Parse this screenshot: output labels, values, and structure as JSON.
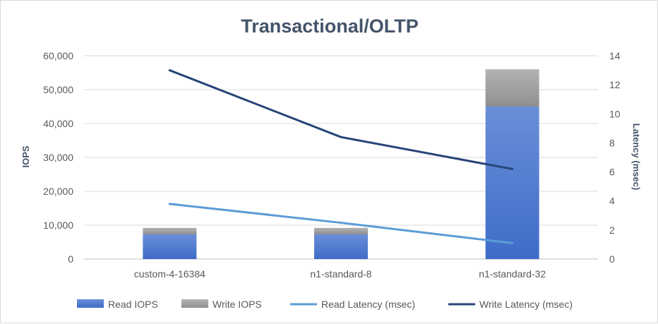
{
  "chart_data": {
    "type": "bar",
    "title": "Transactional/OLTP",
    "categories": [
      "custom-4-16384",
      "n1-standard-8",
      "n1-standard-32"
    ],
    "stacked": true,
    "series": [
      {
        "name": "Read IOPS",
        "type": "bar",
        "axis": "left",
        "color": "#4472c4",
        "values": [
          7300,
          7300,
          45000
        ]
      },
      {
        "name": "Write IOPS",
        "type": "bar",
        "axis": "left",
        "color": "#a5a5a5",
        "values": [
          1900,
          1900,
          11000
        ]
      },
      {
        "name": "Read Latency (msec)",
        "type": "line",
        "axis": "right",
        "color": "#5b9bd5",
        "values": [
          3.8,
          2.5,
          1.1
        ]
      },
      {
        "name": "Write Latency (msec)",
        "type": "line",
        "axis": "right",
        "color": "#264478",
        "values": [
          13.0,
          8.4,
          6.2
        ]
      }
    ],
    "ylabel": "IOPS",
    "ylim": [
      0,
      60000
    ],
    "yticks": [
      "0",
      "10,000",
      "20,000",
      "30,000",
      "40,000",
      "50,000",
      "60,000"
    ],
    "y2label": "Latency (msec)",
    "y2lim": [
      0,
      14
    ],
    "y2ticks": [
      "0",
      "2",
      "4",
      "6",
      "8",
      "10",
      "12",
      "14"
    ],
    "grid": true,
    "legend_position": "bottom"
  }
}
